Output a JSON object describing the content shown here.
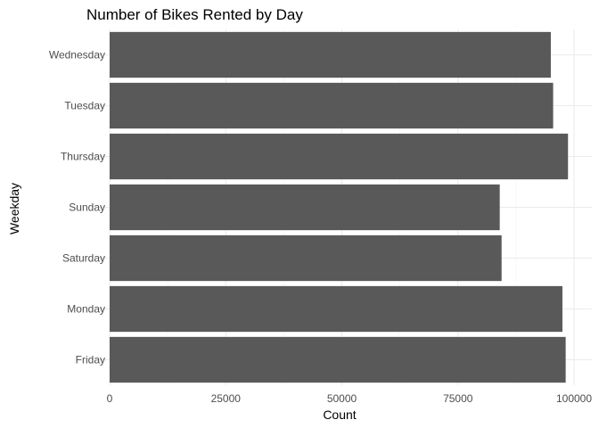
{
  "chart_data": {
    "type": "bar",
    "orientation": "horizontal",
    "title": "Number of Bikes Rented by Day",
    "xlabel": "Count",
    "ylabel": "Weekday",
    "categories": [
      "Friday",
      "Monday",
      "Saturday",
      "Sunday",
      "Thursday",
      "Tuesday",
      "Wednesday"
    ],
    "values": [
      98200,
      97500,
      84400,
      84000,
      98700,
      95500,
      95000
    ],
    "x_ticks": [
      0,
      25000,
      50000,
      75000,
      100000
    ],
    "x_tick_labels": [
      "0",
      "25000",
      "50000",
      "75000",
      "100000"
    ],
    "xlim": [
      0,
      103000
    ],
    "grid": true,
    "bar_color": "#595959"
  }
}
